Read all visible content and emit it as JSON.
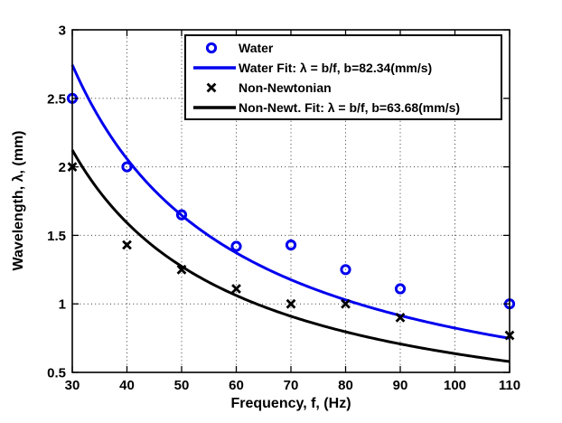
{
  "figure": {
    "background": "#ffffff",
    "axes_color": "#000000",
    "grid_style": "dotted"
  },
  "chart_data": {
    "type": "scatter",
    "title": "",
    "xlabel": "Frequency, f, (Hz)",
    "ylabel": "Wavelength, λ, (mm)",
    "xlim": [
      30,
      110
    ],
    "ylim": [
      0.5,
      3
    ],
    "xticks": [
      30,
      40,
      50,
      60,
      70,
      80,
      90,
      100,
      110
    ],
    "xtick_labels": [
      "30",
      "40",
      "50",
      "60",
      "70",
      "80",
      "90",
      "100",
      "110"
    ],
    "yticks": [
      0.5,
      1,
      1.5,
      2,
      2.5,
      3
    ],
    "ytick_labels": [
      "0.5",
      "1",
      "1.5",
      "2",
      "2.5",
      "3"
    ],
    "grid": true,
    "legend_position": "upper-right-inside",
    "series": [
      {
        "name": "Water",
        "kind": "scatter",
        "marker": "circle",
        "color": "#0000EE",
        "x": [
          30,
          40,
          50,
          60,
          70,
          80,
          90,
          110
        ],
        "y": [
          2.5,
          2.0,
          1.65,
          1.42,
          1.43,
          1.25,
          1.11,
          1.0
        ]
      },
      {
        "name": "Water Fit: λ = b/f, b=82.34(mm/s)",
        "kind": "fit-line",
        "color": "#0000EE",
        "b_mm_per_s": 82.34,
        "f_range": [
          30,
          110
        ]
      },
      {
        "name": "Non-Newtonian",
        "kind": "scatter",
        "marker": "x",
        "color": "#000000",
        "x": [
          30,
          40,
          50,
          60,
          70,
          80,
          90,
          110
        ],
        "y": [
          2.0,
          1.43,
          1.25,
          1.11,
          1.0,
          1.0,
          0.9,
          0.77
        ]
      },
      {
        "name": "Non-Newt. Fit: λ = b/f, b=63.68(mm/s)",
        "kind": "fit-line",
        "color": "#000000",
        "b_mm_per_s": 63.68,
        "f_range": [
          30,
          110
        ]
      }
    ]
  }
}
